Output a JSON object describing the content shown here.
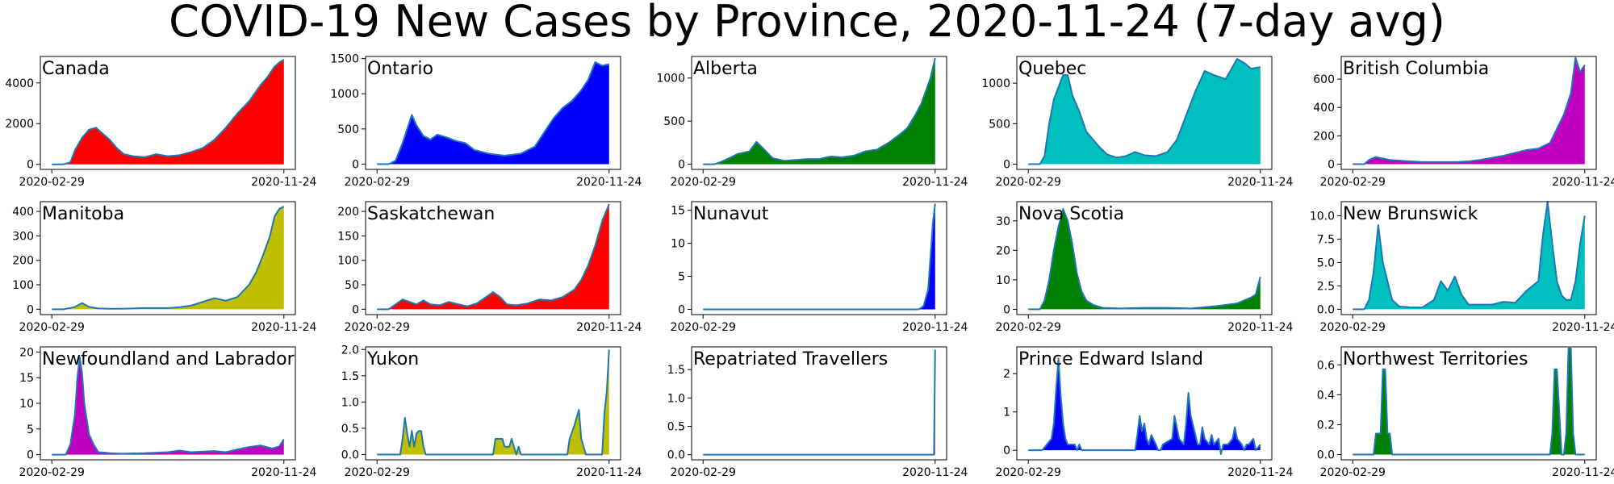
{
  "title": "COVID-19 New Cases by Province, 2020-11-24 (7-day avg)",
  "x_start_label": "2020-02-29",
  "x_end_label": "2020-11-24",
  "line_color": "#1f77b4",
  "chart_data": [
    {
      "type": "area",
      "title": "Canada",
      "fill": "#ff0000",
      "ylim": [
        -250,
        5300
      ],
      "yticks": [
        0,
        2000,
        4000
      ],
      "ytick_labels": [
        "0",
        "2000",
        "4000"
      ],
      "x": [
        0,
        0.05,
        0.08,
        0.1,
        0.13,
        0.16,
        0.19,
        0.22,
        0.25,
        0.28,
        0.31,
        0.35,
        0.4,
        0.45,
        0.5,
        0.55,
        0.6,
        0.65,
        0.7,
        0.75,
        0.8,
        0.85,
        0.9,
        0.93,
        0.96,
        0.98,
        1.0
      ],
      "y": [
        0,
        0,
        100,
        700,
        1300,
        1700,
        1800,
        1500,
        1200,
        800,
        500,
        400,
        350,
        500,
        400,
        450,
        600,
        800,
        1200,
        1800,
        2500,
        3100,
        3900,
        4300,
        4800,
        5000,
        5150
      ]
    },
    {
      "type": "area",
      "title": "Ontario",
      "fill": "#0000ff",
      "ylim": [
        -75,
        1530
      ],
      "yticks": [
        0,
        500,
        1000,
        1500
      ],
      "ytick_labels": [
        "0",
        "500",
        "1000",
        "1500"
      ],
      "x": [
        0,
        0.05,
        0.08,
        0.11,
        0.13,
        0.15,
        0.17,
        0.2,
        0.23,
        0.26,
        0.3,
        0.34,
        0.38,
        0.42,
        0.48,
        0.55,
        0.62,
        0.68,
        0.72,
        0.76,
        0.8,
        0.84,
        0.88,
        0.91,
        0.94,
        0.97,
        1.0
      ],
      "y": [
        0,
        0,
        50,
        300,
        500,
        700,
        550,
        400,
        350,
        420,
        380,
        330,
        300,
        200,
        150,
        120,
        150,
        250,
        450,
        650,
        800,
        900,
        1050,
        1200,
        1450,
        1400,
        1420
      ]
    },
    {
      "type": "area",
      "title": "Alberta",
      "fill": "#008000",
      "ylim": [
        -60,
        1250
      ],
      "yticks": [
        0,
        500,
        1000
      ],
      "ytick_labels": [
        "0",
        "500",
        "1000"
      ],
      "x": [
        0,
        0.05,
        0.08,
        0.12,
        0.15,
        0.2,
        0.23,
        0.26,
        0.3,
        0.35,
        0.4,
        0.45,
        0.5,
        0.55,
        0.6,
        0.65,
        0.7,
        0.75,
        0.8,
        0.85,
        0.88,
        0.91,
        0.94,
        0.96,
        0.98,
        1.0
      ],
      "y": [
        0,
        0,
        30,
        80,
        120,
        150,
        260,
        180,
        70,
        40,
        50,
        60,
        60,
        90,
        80,
        100,
        150,
        170,
        250,
        350,
        420,
        550,
        700,
        850,
        1000,
        1230
      ]
    },
    {
      "type": "area",
      "title": "Quebec",
      "fill": "#00bfbf",
      "ylim": [
        -65,
        1330
      ],
      "yticks": [
        0,
        500,
        1000
      ],
      "ytick_labels": [
        "0",
        "500",
        "1000"
      ],
      "x": [
        0,
        0.05,
        0.07,
        0.09,
        0.11,
        0.13,
        0.15,
        0.17,
        0.19,
        0.22,
        0.25,
        0.28,
        0.31,
        0.34,
        0.38,
        0.42,
        0.46,
        0.5,
        0.55,
        0.6,
        0.64,
        0.68,
        0.72,
        0.76,
        0.8,
        0.85,
        0.9,
        0.93,
        0.96,
        1.0
      ],
      "y": [
        0,
        0,
        100,
        500,
        800,
        950,
        1100,
        1100,
        850,
        650,
        400,
        300,
        200,
        120,
        80,
        100,
        150,
        110,
        100,
        150,
        300,
        600,
        900,
        1150,
        1100,
        1050,
        1300,
        1250,
        1180,
        1200
      ]
    },
    {
      "type": "area",
      "title": "British Columbia",
      "fill": "#bf00bf",
      "ylim": [
        -37,
        760
      ],
      "yticks": [
        0,
        200,
        400,
        600
      ],
      "ytick_labels": [
        "0",
        "200",
        "400",
        "600"
      ],
      "x": [
        0,
        0.05,
        0.07,
        0.1,
        0.13,
        0.16,
        0.2,
        0.25,
        0.3,
        0.35,
        0.4,
        0.45,
        0.5,
        0.55,
        0.6,
        0.65,
        0.7,
        0.75,
        0.8,
        0.85,
        0.88,
        0.91,
        0.94,
        0.96,
        0.98,
        1.0
      ],
      "y": [
        0,
        0,
        30,
        50,
        40,
        30,
        25,
        20,
        15,
        15,
        15,
        15,
        20,
        30,
        45,
        60,
        80,
        100,
        110,
        150,
        250,
        350,
        500,
        750,
        650,
        700
      ]
    },
    {
      "type": "area",
      "title": "Manitoba",
      "fill": "#bfbf00",
      "ylim": [
        -22,
        440
      ],
      "yticks": [
        0,
        100,
        200,
        300,
        400
      ],
      "ytick_labels": [
        "0",
        "100",
        "200",
        "300",
        "400"
      ],
      "x": [
        0,
        0.05,
        0.08,
        0.1,
        0.13,
        0.16,
        0.2,
        0.25,
        0.3,
        0.35,
        0.4,
        0.45,
        0.5,
        0.55,
        0.6,
        0.65,
        0.7,
        0.75,
        0.8,
        0.85,
        0.88,
        0.91,
        0.94,
        0.96,
        0.98,
        1.0
      ],
      "y": [
        0,
        0,
        5,
        10,
        25,
        10,
        3,
        2,
        2,
        3,
        5,
        5,
        5,
        8,
        15,
        30,
        45,
        35,
        50,
        100,
        150,
        220,
        300,
        380,
        410,
        420
      ]
    },
    {
      "type": "area",
      "title": "Saskatchewan",
      "fill": "#ff0000",
      "ylim": [
        -11,
        220
      ],
      "yticks": [
        0,
        50,
        100,
        150,
        200
      ],
      "ytick_labels": [
        "0",
        "50",
        "100",
        "150",
        "200"
      ],
      "x": [
        0,
        0.05,
        0.08,
        0.11,
        0.14,
        0.17,
        0.2,
        0.23,
        0.27,
        0.31,
        0.35,
        0.39,
        0.43,
        0.47,
        0.5,
        0.53,
        0.56,
        0.6,
        0.65,
        0.7,
        0.75,
        0.8,
        0.85,
        0.88,
        0.91,
        0.94,
        0.97,
        1.0
      ],
      "y": [
        0,
        0,
        10,
        20,
        15,
        10,
        18,
        10,
        8,
        15,
        10,
        6,
        12,
        25,
        35,
        25,
        10,
        8,
        12,
        20,
        18,
        25,
        40,
        60,
        90,
        130,
        180,
        215
      ]
    },
    {
      "type": "area",
      "title": "Nunavut",
      "fill": "#0000ff",
      "ylim": [
        -0.8,
        16.3
      ],
      "yticks": [
        0,
        5,
        10,
        15
      ],
      "ytick_labels": [
        "0",
        "5",
        "10",
        "15"
      ],
      "x": [
        0,
        0.9,
        0.93,
        0.95,
        0.97,
        0.98,
        0.99,
        1.0
      ],
      "y": [
        0,
        0,
        0,
        0.5,
        3,
        8,
        13,
        16
      ]
    },
    {
      "type": "area",
      "title": "Nova Scotia",
      "fill": "#008000",
      "ylim": [
        -1.8,
        36.5
      ],
      "yticks": [
        0,
        10,
        20,
        30
      ],
      "ytick_labels": [
        "0",
        "10",
        "20",
        "30"
      ],
      "x": [
        0,
        0.05,
        0.07,
        0.09,
        0.11,
        0.13,
        0.15,
        0.17,
        0.19,
        0.21,
        0.23,
        0.25,
        0.28,
        0.32,
        0.4,
        0.5,
        0.6,
        0.7,
        0.8,
        0.85,
        0.9,
        0.93,
        0.96,
        0.98,
        1.0
      ],
      "y": [
        0,
        0,
        3,
        10,
        20,
        28,
        34,
        30,
        22,
        12,
        6,
        3,
        1.5,
        0.5,
        0.3,
        0.5,
        0.5,
        0.3,
        1,
        1.5,
        2,
        3,
        4,
        5,
        11
      ]
    },
    {
      "type": "area",
      "title": "New Brunswick",
      "fill": "#00bfbf",
      "ylim": [
        -0.57,
        11.5
      ],
      "yticks": [
        0,
        2.5,
        5.0,
        7.5,
        10.0
      ],
      "ytick_labels": [
        "0.0",
        "2.5",
        "5.0",
        "7.5",
        "10.0"
      ],
      "x": [
        0,
        0.05,
        0.07,
        0.09,
        0.11,
        0.13,
        0.15,
        0.17,
        0.2,
        0.25,
        0.3,
        0.35,
        0.38,
        0.41,
        0.44,
        0.47,
        0.5,
        0.55,
        0.6,
        0.65,
        0.7,
        0.75,
        0.8,
        0.82,
        0.84,
        0.86,
        0.88,
        0.9,
        0.92,
        0.94,
        0.96,
        0.98,
        1.0
      ],
      "y": [
        0,
        0,
        1,
        4,
        9,
        5,
        3,
        1,
        0.3,
        0.2,
        0.2,
        1,
        3,
        2,
        3.5,
        1.5,
        0.5,
        0.5,
        0.5,
        0.8,
        0.7,
        2,
        3,
        8,
        11.5,
        7,
        3,
        1.5,
        1,
        1,
        3,
        7,
        10
      ]
    },
    {
      "type": "area",
      "title": "Newfoundland and Labrador",
      "fill": "#bf00bf",
      "ylim": [
        -1.0,
        21
      ],
      "yticks": [
        0,
        5,
        10,
        15,
        20
      ],
      "ytick_labels": [
        "0",
        "5",
        "10",
        "15",
        "20"
      ],
      "x": [
        0,
        0.06,
        0.08,
        0.1,
        0.11,
        0.12,
        0.13,
        0.14,
        0.16,
        0.18,
        0.2,
        0.25,
        0.3,
        0.4,
        0.5,
        0.55,
        0.6,
        0.7,
        0.75,
        0.8,
        0.85,
        0.9,
        0.95,
        0.98,
        1.0
      ],
      "y": [
        0,
        0,
        2,
        8,
        15,
        19,
        16,
        10,
        4,
        2,
        0.5,
        0.3,
        0.2,
        0.3,
        0.5,
        0.8,
        0.5,
        0.7,
        0.5,
        1,
        1.5,
        1.8,
        1.2,
        1.6,
        3
      ]
    },
    {
      "type": "area",
      "title": "Yukon",
      "fill": "#bfbf00",
      "ylim": [
        -0.1,
        2.05
      ],
      "yticks": [
        0.0,
        0.5,
        1.0,
        1.5,
        2.0
      ],
      "ytick_labels": [
        "0.0",
        "0.5",
        "1.0",
        "1.5",
        "2.0"
      ],
      "x": [
        0,
        0.1,
        0.11,
        0.12,
        0.13,
        0.14,
        0.15,
        0.16,
        0.17,
        0.18,
        0.19,
        0.2,
        0.21,
        0.22,
        0.23,
        0.5,
        0.51,
        0.54,
        0.55,
        0.57,
        0.58,
        0.6,
        0.61,
        0.62,
        0.82,
        0.83,
        0.85,
        0.87,
        0.88,
        0.9,
        0.97,
        0.98,
        0.99,
        1.0
      ],
      "y": [
        0,
        0,
        0.3,
        0.7,
        0.4,
        0.15,
        0.45,
        0.15,
        0.4,
        0.45,
        0.45,
        0.15,
        0,
        0,
        0,
        0,
        0.3,
        0.3,
        0.15,
        0.15,
        0.3,
        0,
        0.15,
        0,
        0,
        0.3,
        0.55,
        0.85,
        0.3,
        0,
        0,
        0.8,
        1.2,
        2.0
      ]
    },
    {
      "type": "area",
      "title": "Repatriated Travellers",
      "fill": "#ff0000",
      "ylim": [
        -0.09,
        1.9
      ],
      "yticks": [
        0.0,
        0.5,
        1.0,
        1.5
      ],
      "ytick_labels": [
        "0.0",
        "0.5",
        "1.0",
        "1.5"
      ],
      "x": [
        0,
        0.99,
        0.995,
        1.0
      ],
      "y": [
        0,
        0,
        0,
        1.85
      ]
    },
    {
      "type": "area",
      "title": "Prince Edward Island",
      "fill": "#0000ff",
      "ylim": [
        -0.25,
        2.7
      ],
      "yticks": [
        0,
        1,
        2
      ],
      "ytick_labels": [
        "0",
        "1",
        "2"
      ],
      "x": [
        0,
        0.05,
        0.06,
        0.08,
        0.1,
        0.11,
        0.12,
        0.13,
        0.14,
        0.15,
        0.16,
        0.17,
        0.18,
        0.2,
        0.21,
        0.22,
        0.23,
        0.46,
        0.47,
        0.48,
        0.49,
        0.5,
        0.51,
        0.52,
        0.53,
        0.55,
        0.56,
        0.57,
        0.58,
        0.62,
        0.63,
        0.64,
        0.65,
        0.67,
        0.68,
        0.69,
        0.7,
        0.72,
        0.73,
        0.74,
        0.75,
        0.76,
        0.78,
        0.79,
        0.8,
        0.82,
        0.83,
        0.84,
        0.86,
        0.88,
        0.89,
        0.9,
        0.92,
        0.93,
        0.94,
        0.95,
        0.97,
        0.98,
        1.0
      ],
      "y": [
        0,
        0,
        0,
        0.15,
        0.3,
        0.7,
        1.6,
        2.4,
        1.4,
        0.7,
        0.3,
        0.15,
        0.15,
        0.15,
        0,
        0.15,
        0,
        0,
        0.4,
        0.9,
        0.5,
        0.7,
        0.3,
        0.15,
        0.4,
        0.15,
        0,
        0,
        0.15,
        0.3,
        0.9,
        0.6,
        0.3,
        0.15,
        0.7,
        1.5,
        0.9,
        0.4,
        0.15,
        0.15,
        0.6,
        0.3,
        0.15,
        0.4,
        0.15,
        0.3,
        -0.1,
        0.15,
        0.15,
        0.3,
        0.6,
        0.3,
        0.15,
        0,
        0.15,
        0.15,
        0.3,
        0,
        0.15
      ]
    },
    {
      "type": "area",
      "title": "Northwest Territories",
      "fill": "#008000",
      "ylim": [
        -0.035,
        0.72
      ],
      "yticks": [
        0.0,
        0.2,
        0.4,
        0.6
      ],
      "ytick_labels": [
        "0.0",
        "0.2",
        "0.4",
        "0.6"
      ],
      "x": [
        0,
        0.09,
        0.1,
        0.12,
        0.13,
        0.14,
        0.15,
        0.16,
        0.17,
        0.18,
        0.85,
        0.86,
        0.87,
        0.88,
        0.89,
        0.9,
        0.91,
        0.92,
        0.93,
        0.94,
        0.95,
        0.96,
        1.0
      ],
      "y": [
        0,
        0,
        0.14,
        0.14,
        0.57,
        0.57,
        0.14,
        0.14,
        0,
        0,
        0,
        0.14,
        0.57,
        0.57,
        0.29,
        0,
        0,
        0.14,
        0.71,
        0.71,
        0.14,
        0,
        0
      ]
    }
  ]
}
